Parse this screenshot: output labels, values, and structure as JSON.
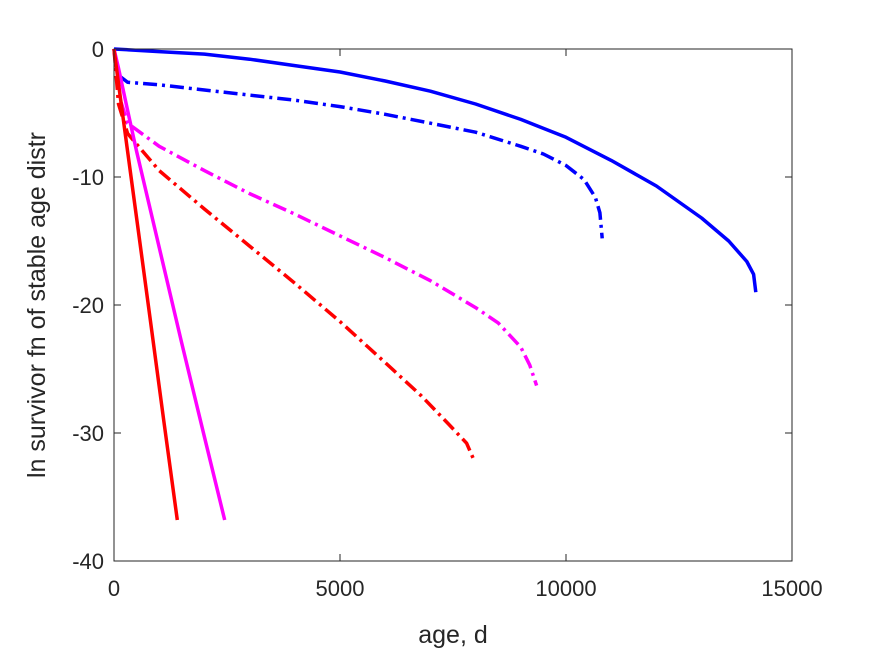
{
  "chart_data": {
    "type": "line",
    "title": "",
    "xlabel": "age, d",
    "ylabel": "ln survivor fn of stable age distr",
    "xlim": [
      0,
      15000
    ],
    "ylim": [
      -40,
      0
    ],
    "xticks": [
      0,
      5000,
      10000,
      15000
    ],
    "xtick_labels": [
      "0",
      "5000",
      "10000",
      "15000"
    ],
    "yticks": [
      0,
      -10,
      -20,
      -30,
      -40
    ],
    "ytick_labels": [
      "0",
      "-10",
      "-20",
      "-30",
      "-40"
    ],
    "grid": false,
    "legend": "none",
    "series": [
      {
        "color": "#0000ff",
        "style": "solid",
        "x": [
          0,
          1000,
          2000,
          3000,
          4000,
          5000,
          6000,
          7000,
          8000,
          9000,
          10000,
          11000,
          12000,
          13000,
          13600,
          14000,
          14150,
          14200
        ],
        "y": [
          0,
          -0.2,
          -0.4,
          -0.8,
          -1.3,
          -1.8,
          -2.5,
          -3.3,
          -4.3,
          -5.5,
          -6.9,
          -8.7,
          -10.7,
          -13.2,
          -15.0,
          -16.6,
          -17.6,
          -19.0
        ]
      },
      {
        "color": "#0000ff",
        "style": "dashdot",
        "x": [
          0,
          80,
          300,
          1000,
          2000,
          3000,
          4000,
          5000,
          6000,
          7000,
          8000,
          9000,
          9500,
          10000,
          10400,
          10650,
          10750,
          10800
        ],
        "y": [
          0,
          -2.0,
          -2.6,
          -2.8,
          -3.2,
          -3.6,
          -4.0,
          -4.5,
          -5.1,
          -5.8,
          -6.5,
          -7.6,
          -8.2,
          -9.1,
          -10.2,
          -11.6,
          -12.8,
          -14.8
        ]
      },
      {
        "color": "#ff00ff",
        "style": "dashdot",
        "x": [
          0,
          100,
          300,
          1000,
          2000,
          3000,
          4000,
          5000,
          6000,
          7000,
          8000,
          8500,
          9000,
          9200,
          9350
        ],
        "y": [
          0,
          -3.5,
          -5.8,
          -7.6,
          -9.5,
          -11.3,
          -12.9,
          -14.6,
          -16.3,
          -18.1,
          -20.2,
          -21.4,
          -23.3,
          -24.7,
          -26.3
        ]
      },
      {
        "color": "#ff0000",
        "style": "dashdot",
        "x": [
          0,
          100,
          300,
          1000,
          2000,
          3000,
          4000,
          5000,
          6000,
          6800,
          7400,
          7800,
          7950
        ],
        "y": [
          0,
          -4.3,
          -6.6,
          -9.5,
          -12.5,
          -15.4,
          -18.3,
          -21.3,
          -24.5,
          -27.1,
          -29.3,
          -30.8,
          -32.0
        ]
      },
      {
        "color": "#ff00ff",
        "style": "solid",
        "x": [
          0,
          100,
          300,
          500,
          1000,
          1500,
          2000,
          2450
        ],
        "y": [
          0,
          -1.5,
          -4.8,
          -8.0,
          -15.5,
          -23.0,
          -30.3,
          -36.8
        ]
      },
      {
        "color": "#ff0000",
        "style": "solid",
        "x": [
          0,
          100,
          300,
          500,
          800,
          1100,
          1400
        ],
        "y": [
          0,
          -2.7,
          -8.0,
          -13.2,
          -21.1,
          -29.0,
          -36.8
        ]
      }
    ]
  }
}
